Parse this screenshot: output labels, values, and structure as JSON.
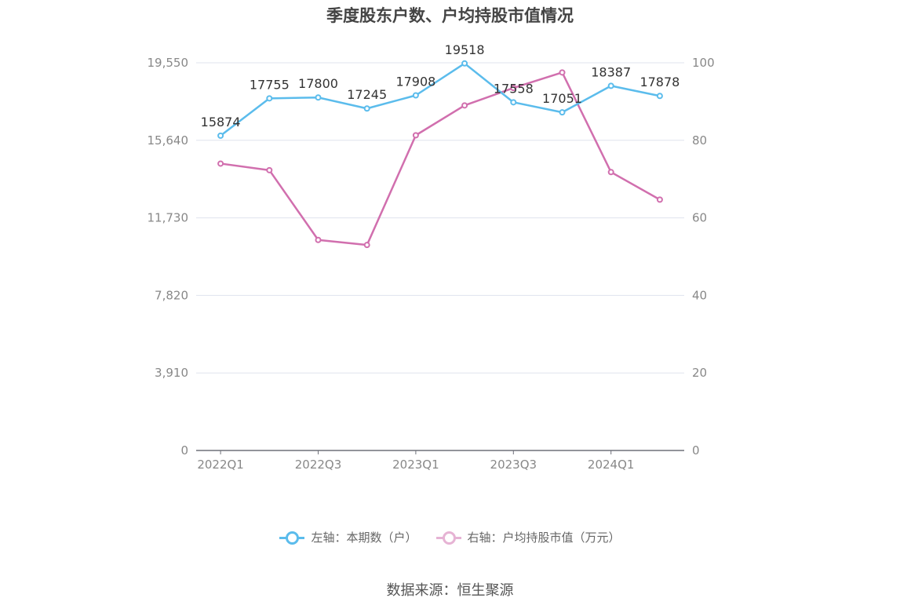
{
  "chart_data": {
    "type": "line",
    "title": "季度股东户数、户均持股市值情况",
    "categories": [
      "2022Q1",
      "2022Q2",
      "2022Q3",
      "2022Q4",
      "2023Q1",
      "2023Q2",
      "2023Q3",
      "2023Q4",
      "2024Q1",
      "2024Q2"
    ],
    "x_tick_labels": [
      "2022Q1",
      "",
      "2022Q3",
      "",
      "2023Q1",
      "",
      "2023Q3",
      "",
      "2024Q1",
      ""
    ],
    "left_axis": {
      "ticks": [
        "0",
        "3,910",
        "7,820",
        "11,730",
        "15,640",
        "19,550"
      ],
      "ylim": [
        0,
        19550
      ]
    },
    "right_axis": {
      "ticks": [
        "0",
        "20",
        "40",
        "60",
        "80",
        "100"
      ],
      "ylim": [
        0,
        100
      ]
    },
    "grid": true,
    "legend_position": "bottom",
    "series": [
      {
        "name": "左轴：本期数（户）",
        "axis": "left",
        "color": "#5bbcec",
        "values": [
          15874,
          17755,
          17800,
          17245,
          17908,
          19518,
          17558,
          17051,
          18387,
          17878
        ],
        "labels": [
          "15874",
          "17755",
          "17800",
          "17245",
          "17908",
          "19518",
          "17558",
          "17051",
          "18387",
          "17878"
        ]
      },
      {
        "name": "右轴：户均持股市值（万元）",
        "axis": "right",
        "color": "#d16fae",
        "values": [
          74,
          72.3,
          54.3,
          53,
          81.3,
          89,
          93.5,
          97.5,
          71.8,
          64.7
        ]
      }
    ]
  },
  "source": "数据来源：恒生聚源"
}
